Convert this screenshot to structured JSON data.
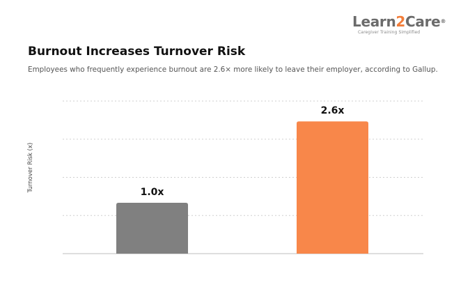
{
  "logo": {
    "prefix": "Learn",
    "digit": "2",
    "suffix": "Care",
    "registered": "®",
    "tagline": "Caregiver Training Simplified"
  },
  "colors": {
    "bar_1": "#808080",
    "bar_2": "#f8874a",
    "grid": "#cfcfcf",
    "axis": "#bdbdbd"
  },
  "chart_data": {
    "type": "bar",
    "title": "Burnout Increases Turnover Risk",
    "subtitle": "Employees who frequently experience burnout are 2.6× more likely to leave their employer, according to Gallup.",
    "xlabel": "",
    "ylabel": "Turnover Risk (x)",
    "values": [
      1.0,
      2.6
    ],
    "data_labels": [
      "1.0x",
      "2.6x"
    ],
    "ylim": [
      0,
      3
    ],
    "grid": true,
    "legend": "none"
  }
}
